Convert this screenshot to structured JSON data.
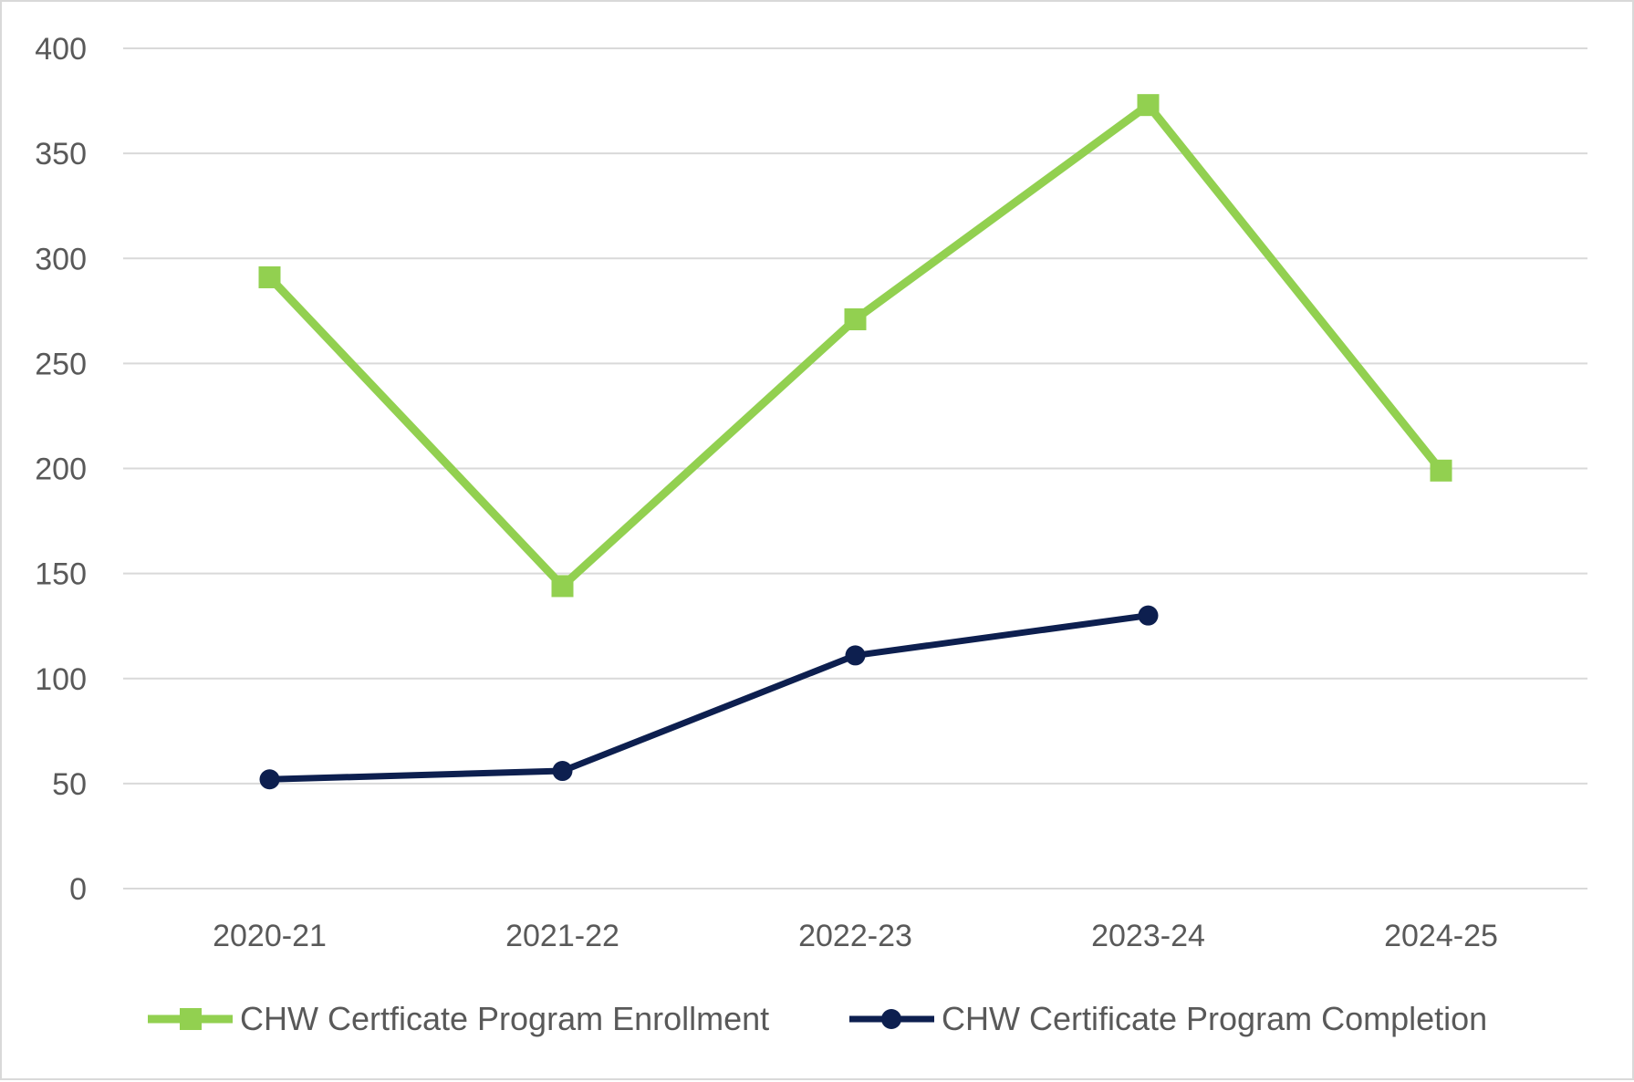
{
  "chart_data": {
    "type": "line",
    "categories": [
      "2020-21",
      "2021-22",
      "2022-23",
      "2023-24",
      "2024-25"
    ],
    "ylim": [
      0,
      400
    ],
    "yticks": [
      0,
      50,
      100,
      150,
      200,
      250,
      300,
      350,
      400
    ],
    "grid": true,
    "legend_position": "bottom",
    "title": "",
    "xlabel": "",
    "ylabel": "",
    "series": [
      {
        "name": "CHW Certficate Program Enrollment",
        "values": [
          291,
          144,
          271,
          373,
          199
        ],
        "color": "#92d050",
        "marker": "square"
      },
      {
        "name": "CHW Certificate Program Completion",
        "values": [
          52,
          56,
          111,
          130,
          null
        ],
        "color": "#0d1f4f",
        "marker": "circle"
      }
    ]
  }
}
